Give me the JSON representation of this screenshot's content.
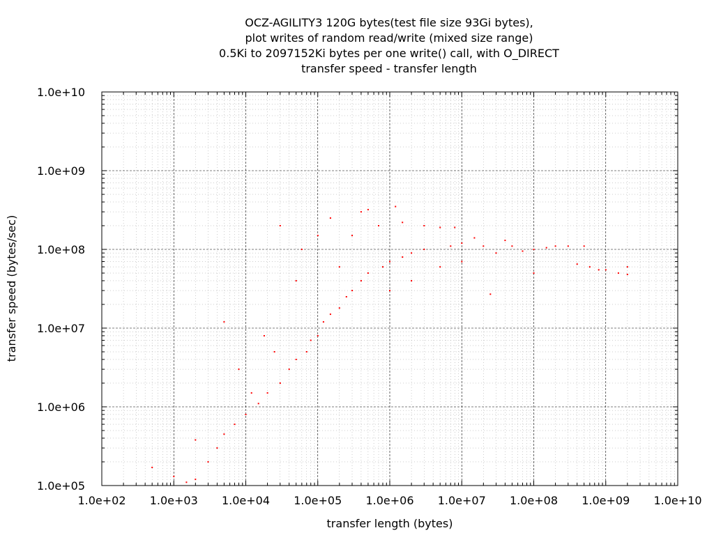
{
  "chart_data": {
    "type": "scatter",
    "title_lines": [
      "OCZ-AGILITY3 120G bytes(test file size 93Gi bytes),",
      "plot writes of random read/write (mixed size range)",
      "0.5Ki to 2097152Ki bytes per one write() call, with O_DIRECT",
      "transfer speed - transfer length"
    ],
    "xlabel": "transfer length (bytes)",
    "ylabel": "transfer speed (bytes/sec)",
    "x_scale": "log",
    "y_scale": "log",
    "xlim": [
      100,
      10000000000
    ],
    "ylim": [
      100000,
      10000000000
    ],
    "x_ticks": [
      {
        "value": 100,
        "label": "1.0e+02"
      },
      {
        "value": 1000,
        "label": "1.0e+03"
      },
      {
        "value": 10000,
        "label": "1.0e+04"
      },
      {
        "value": 100000,
        "label": "1.0e+05"
      },
      {
        "value": 1000000,
        "label": "1.0e+06"
      },
      {
        "value": 10000000,
        "label": "1.0e+07"
      },
      {
        "value": 100000000,
        "label": "1.0e+08"
      },
      {
        "value": 1000000000,
        "label": "1.0e+09"
      },
      {
        "value": 10000000000,
        "label": "1.0e+10"
      }
    ],
    "y_ticks": [
      {
        "value": 100000,
        "label": "1.0e+05"
      },
      {
        "value": 1000000,
        "label": "1.0e+06"
      },
      {
        "value": 10000000,
        "label": "1.0e+07"
      },
      {
        "value": 100000000,
        "label": "1.0e+08"
      },
      {
        "value": 1000000000,
        "label": "1.0e+09"
      },
      {
        "value": 10000000000,
        "label": "1.0e+10"
      }
    ],
    "grid": true,
    "series": [
      {
        "color": "#ff0000",
        "points": [
          [
            500,
            170000
          ],
          [
            1000,
            130000
          ],
          [
            1500,
            110000
          ],
          [
            2000,
            120000
          ],
          [
            2000,
            380000
          ],
          [
            3000,
            200000
          ],
          [
            4000,
            300000
          ],
          [
            5000,
            450000
          ],
          [
            5000,
            12000000
          ],
          [
            7000,
            600000
          ],
          [
            8000,
            3000000
          ],
          [
            10000,
            800000
          ],
          [
            12000,
            1500000
          ],
          [
            15000,
            1100000
          ],
          [
            18000,
            8000000
          ],
          [
            20000,
            1500000
          ],
          [
            25000,
            5000000
          ],
          [
            30000,
            2000000
          ],
          [
            30000,
            200000000
          ],
          [
            40000,
            3000000
          ],
          [
            50000,
            4000000
          ],
          [
            50000,
            40000000
          ],
          [
            60000,
            100000000
          ],
          [
            70000,
            5000000
          ],
          [
            80000,
            7000000
          ],
          [
            100000,
            8000000
          ],
          [
            100000,
            150000000
          ],
          [
            120000,
            12000000
          ],
          [
            150000,
            15000000
          ],
          [
            150000,
            250000000
          ],
          [
            200000,
            18000000
          ],
          [
            200000,
            60000000
          ],
          [
            250000,
            25000000
          ],
          [
            300000,
            30000000
          ],
          [
            300000,
            150000000
          ],
          [
            400000,
            40000000
          ],
          [
            400000,
            300000000
          ],
          [
            500000,
            50000000
          ],
          [
            500000,
            320000000
          ],
          [
            700000,
            200000000
          ],
          [
            800000,
            60000000
          ],
          [
            1000000,
            70000000
          ],
          [
            1000000,
            30000000
          ],
          [
            1200000,
            350000000
          ],
          [
            1500000,
            80000000
          ],
          [
            1500000,
            220000000
          ],
          [
            2000000,
            90000000
          ],
          [
            2000000,
            40000000
          ],
          [
            3000000,
            200000000
          ],
          [
            3000000,
            100000000
          ],
          [
            5000000,
            190000000
          ],
          [
            5000000,
            60000000
          ],
          [
            7000000,
            110000000
          ],
          [
            8000000,
            190000000
          ],
          [
            10000000,
            120000000
          ],
          [
            10000000,
            70000000
          ],
          [
            15000000,
            140000000
          ],
          [
            20000000,
            110000000
          ],
          [
            25000000,
            27000000
          ],
          [
            30000000,
            90000000
          ],
          [
            40000000,
            130000000
          ],
          [
            50000000,
            110000000
          ],
          [
            70000000,
            95000000
          ],
          [
            100000000,
            100000000
          ],
          [
            100000000,
            50000000
          ],
          [
            150000000,
            105000000
          ],
          [
            200000000,
            110000000
          ],
          [
            300000000,
            110000000
          ],
          [
            400000000,
            65000000
          ],
          [
            500000000,
            110000000
          ],
          [
            600000000,
            60000000
          ],
          [
            800000000,
            55000000
          ],
          [
            1000000000,
            55000000
          ],
          [
            1500000000,
            50000000
          ],
          [
            2000000000,
            48000000
          ],
          [
            2000000000,
            60000000
          ]
        ]
      }
    ]
  }
}
